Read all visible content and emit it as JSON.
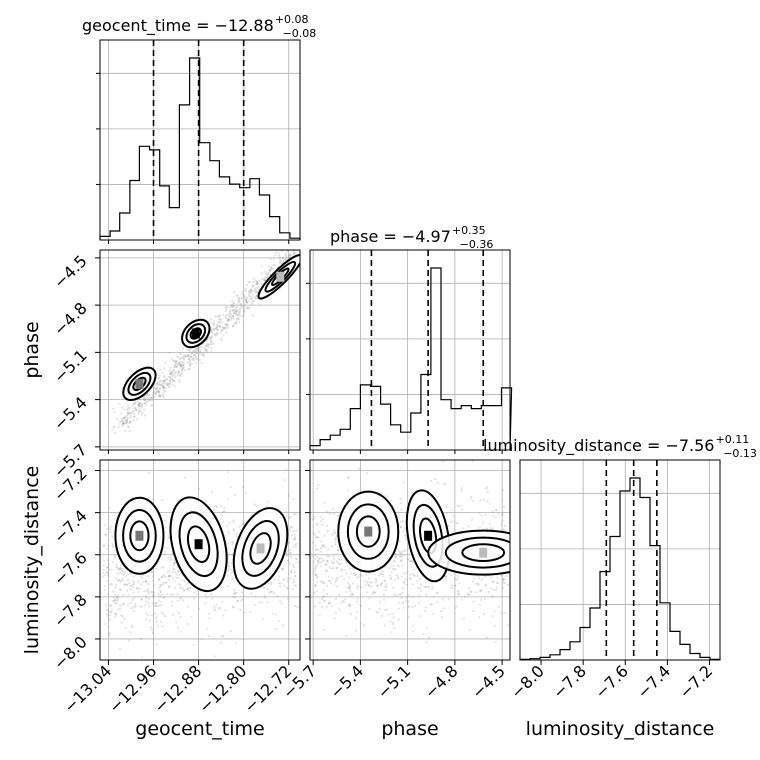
{
  "chart_data": {
    "type": "corner",
    "parameters": [
      "geocent_time",
      "phase",
      "luminosity_distance"
    ],
    "axis_labels": {
      "geocent_time": "geocent_time",
      "phase": "phase",
      "luminosity_distance": "luminosity_distance"
    },
    "ranges": {
      "geocent_time": [
        -13.055,
        -12.7
      ],
      "phase": [
        -5.72,
        -4.45
      ],
      "luminosity_distance": [
        -8.1,
        -7.15
      ]
    },
    "tick_values": {
      "geocent_time": [
        -13.04,
        -12.96,
        -12.88,
        -12.8,
        -12.72
      ],
      "phase": [
        -5.7,
        -5.4,
        -5.1,
        -4.8,
        -4.5
      ],
      "luminosity_distance": [
        -8.0,
        -7.8,
        -7.6,
        -7.4,
        -7.2
      ]
    },
    "tick_labels": {
      "geocent_time": [
        "−13.04",
        "−12.96",
        "−12.88",
        "−12.80",
        "−12.72"
      ],
      "phase": [
        "−5.7",
        "−5.4",
        "−5.1",
        "−4.8",
        "−4.5"
      ],
      "luminosity_distance": [
        "−8.0",
        "−7.8",
        "−7.6",
        "−7.4",
        "−7.2"
      ]
    },
    "titles": {
      "geocent_time": {
        "main": "geocent_time = −12.88",
        "sup": "+0.08",
        "sub": "−0.08"
      },
      "phase": {
        "main": "phase = −4.97",
        "sup": "+0.35",
        "sub": "−0.36"
      },
      "luminosity_distance": {
        "main": "luminosity_distance = −7.56",
        "sup": "+0.11",
        "sub": "−0.13"
      }
    },
    "quantiles": {
      "geocent_time": [
        -12.96,
        -12.88,
        -12.8
      ],
      "phase": [
        -5.33,
        -4.97,
        -4.62
      ],
      "luminosity_distance": [
        -7.69,
        -7.56,
        -7.45
      ]
    },
    "histograms": {
      "geocent_time": {
        "edges": [
          -13.055,
          -13.037,
          -13.02,
          -13.002,
          -12.985,
          -12.967,
          -12.949,
          -12.932,
          -12.914,
          -12.896,
          -12.878,
          -12.86,
          -12.843,
          -12.825,
          -12.807,
          -12.789,
          -12.772,
          -12.754,
          -12.736,
          -12.718,
          -12.7
        ],
        "counts": [
          2,
          5,
          15,
          33,
          52,
          50,
          30,
          18,
          75,
          101,
          54,
          44,
          35,
          31,
          29,
          34,
          25,
          13,
          4,
          1
        ]
      },
      "phase": {
        "edges": [
          -5.72,
          -5.656,
          -5.592,
          -5.528,
          -5.464,
          -5.4,
          -5.336,
          -5.272,
          -5.208,
          -5.144,
          -5.08,
          -5.016,
          -4.952,
          -4.888,
          -4.824,
          -4.76,
          -4.696,
          -4.632,
          -4.568,
          -4.504,
          -4.44
        ],
        "counts": [
          3,
          7,
          10,
          14,
          28,
          44,
          43,
          31,
          17,
          12,
          25,
          51,
          123,
          34,
          28,
          30,
          28,
          30,
          30,
          42
        ]
      },
      "luminosity_distance": {
        "edges": [
          -8.1,
          -8.0525,
          -8.005,
          -7.9575,
          -7.91,
          -7.8625,
          -7.815,
          -7.7675,
          -7.72,
          -7.6725,
          -7.625,
          -7.5775,
          -7.53,
          -7.4825,
          -7.435,
          -7.3875,
          -7.34,
          -7.2925,
          -7.245,
          -7.1975,
          -7.15
        ],
        "counts": [
          0.5,
          1,
          2,
          4,
          8,
          14,
          25,
          40,
          68,
          95,
          130,
          140,
          125,
          88,
          44,
          22,
          12,
          5,
          2,
          0.5
        ]
      }
    },
    "density_peaks": {
      "phase_vs_geocent_time": [
        {
          "x": -12.885,
          "y": -4.98,
          "level": "high"
        },
        {
          "x": -12.985,
          "y": -5.3,
          "level": "medium"
        },
        {
          "x": -12.735,
          "y": -4.62,
          "level": "low"
        }
      ],
      "luminosity_distance_vs_geocent_time": [
        {
          "x": -12.88,
          "y": -7.55,
          "level": "high"
        },
        {
          "x": -12.98,
          "y": -7.51,
          "level": "medium"
        },
        {
          "x": -12.77,
          "y": -7.57,
          "level": "low"
        }
      ],
      "luminosity_distance_vs_phase": [
        {
          "x": -4.97,
          "y": -7.51,
          "level": "high"
        },
        {
          "x": -5.35,
          "y": -7.49,
          "level": "medium"
        },
        {
          "x": -4.62,
          "y": -7.59,
          "level": "low"
        }
      ]
    }
  }
}
